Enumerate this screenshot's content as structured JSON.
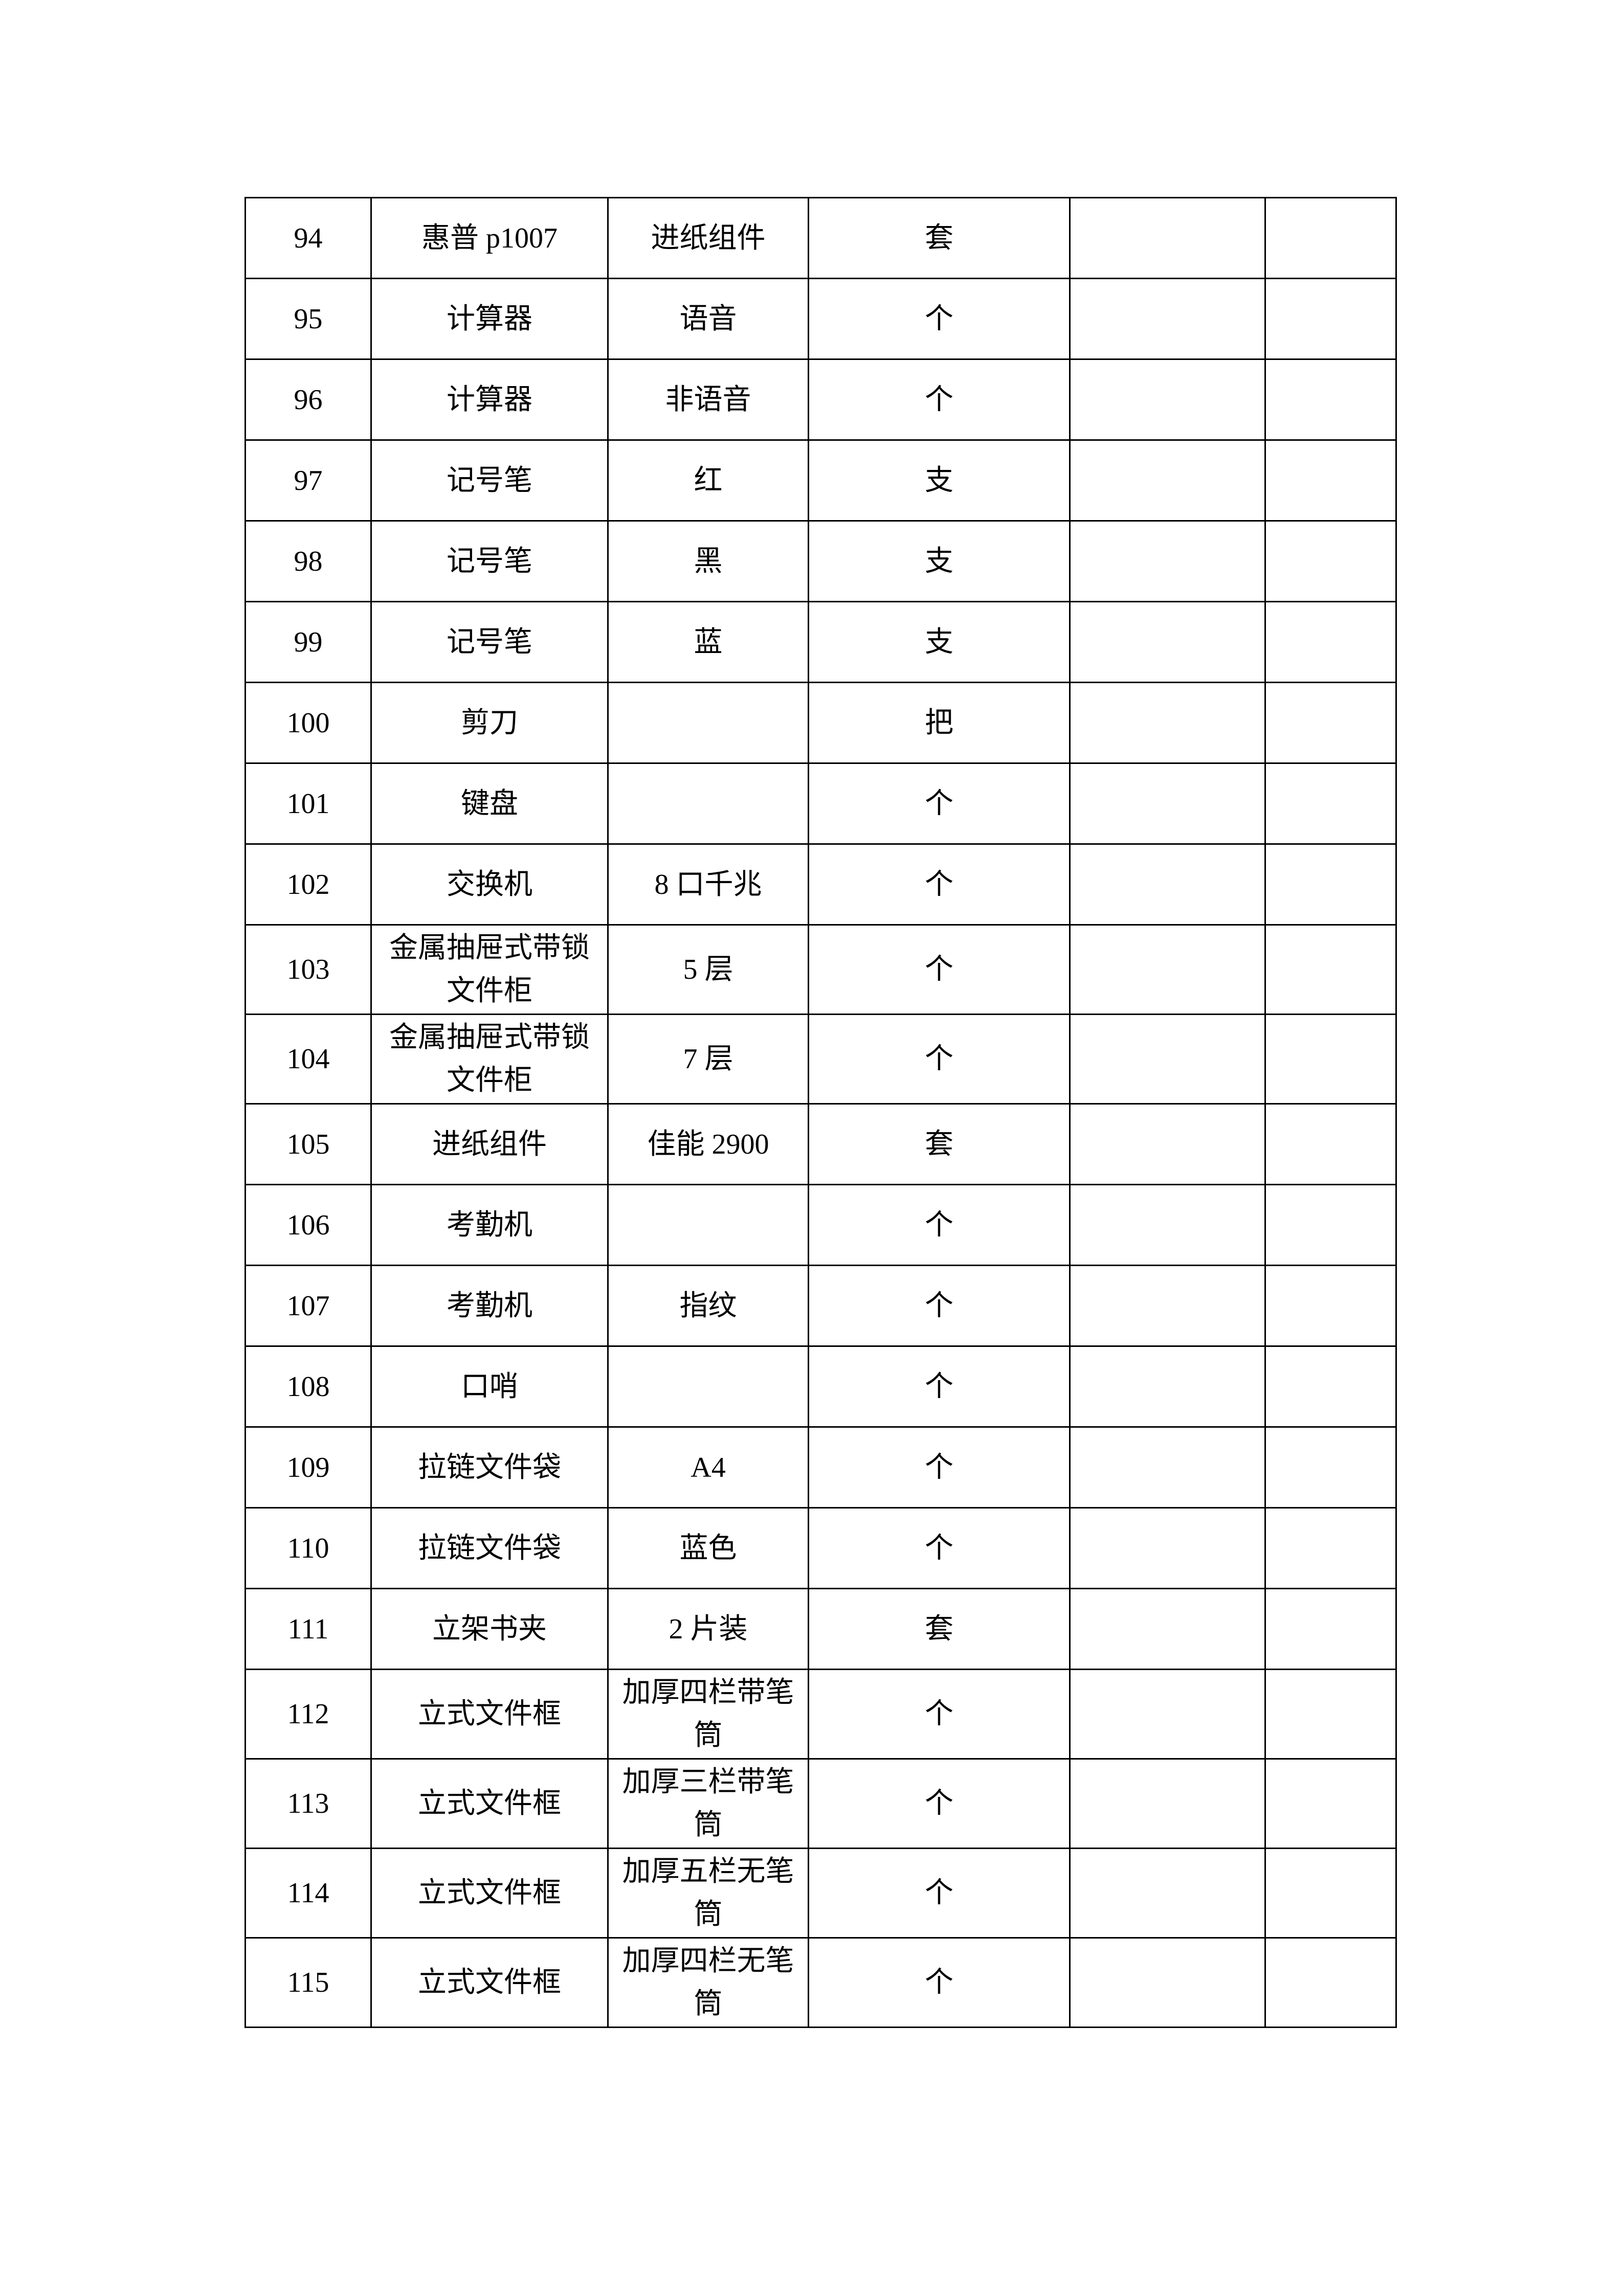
{
  "rows": [
    {
      "no": "94",
      "name": "惠普 p1007",
      "spec": "进纸组件",
      "unit": "套"
    },
    {
      "no": "95",
      "name": "计算器",
      "spec": "语音",
      "unit": "个"
    },
    {
      "no": "96",
      "name": "计算器",
      "spec": "非语音",
      "unit": "个"
    },
    {
      "no": "97",
      "name": "记号笔",
      "spec": "红",
      "unit": "支"
    },
    {
      "no": "98",
      "name": "记号笔",
      "spec": "黑",
      "unit": "支"
    },
    {
      "no": "99",
      "name": "记号笔",
      "spec": "蓝",
      "unit": "支"
    },
    {
      "no": "100",
      "name": "剪刀",
      "spec": "",
      "unit": "把"
    },
    {
      "no": "101",
      "name": "键盘",
      "spec": "",
      "unit": "个"
    },
    {
      "no": "102",
      "name": "交换机",
      "spec": "8 口千兆",
      "unit": "个"
    },
    {
      "no": "103",
      "name": "金属抽屉式带锁文件柜",
      "spec": "5 层",
      "unit": "个"
    },
    {
      "no": "104",
      "name": "金属抽屉式带锁文件柜",
      "spec": "7 层",
      "unit": "个"
    },
    {
      "no": "105",
      "name": "进纸组件",
      "spec": "佳能 2900",
      "unit": "套"
    },
    {
      "no": "106",
      "name": "考勤机",
      "spec": "",
      "unit": "个"
    },
    {
      "no": "107",
      "name": "考勤机",
      "spec": "指纹",
      "unit": "个"
    },
    {
      "no": "108",
      "name": "口哨",
      "spec": "",
      "unit": "个"
    },
    {
      "no": "109",
      "name": "拉链文件袋",
      "spec": "A4",
      "unit": "个"
    },
    {
      "no": "110",
      "name": "拉链文件袋",
      "spec": "蓝色",
      "unit": "个"
    },
    {
      "no": "111",
      "name": "立架书夹",
      "spec": "2 片装",
      "unit": "套"
    },
    {
      "no": "112",
      "name": "立式文件框",
      "spec": "加厚四栏带笔筒",
      "unit": "个"
    },
    {
      "no": "113",
      "name": "立式文件框",
      "spec": "加厚三栏带笔筒",
      "unit": "个"
    },
    {
      "no": "114",
      "name": "立式文件框",
      "spec": "加厚五栏无笔筒",
      "unit": "个"
    },
    {
      "no": "115",
      "name": "立式文件框",
      "spec": "加厚四栏无笔筒",
      "unit": "个"
    }
  ]
}
